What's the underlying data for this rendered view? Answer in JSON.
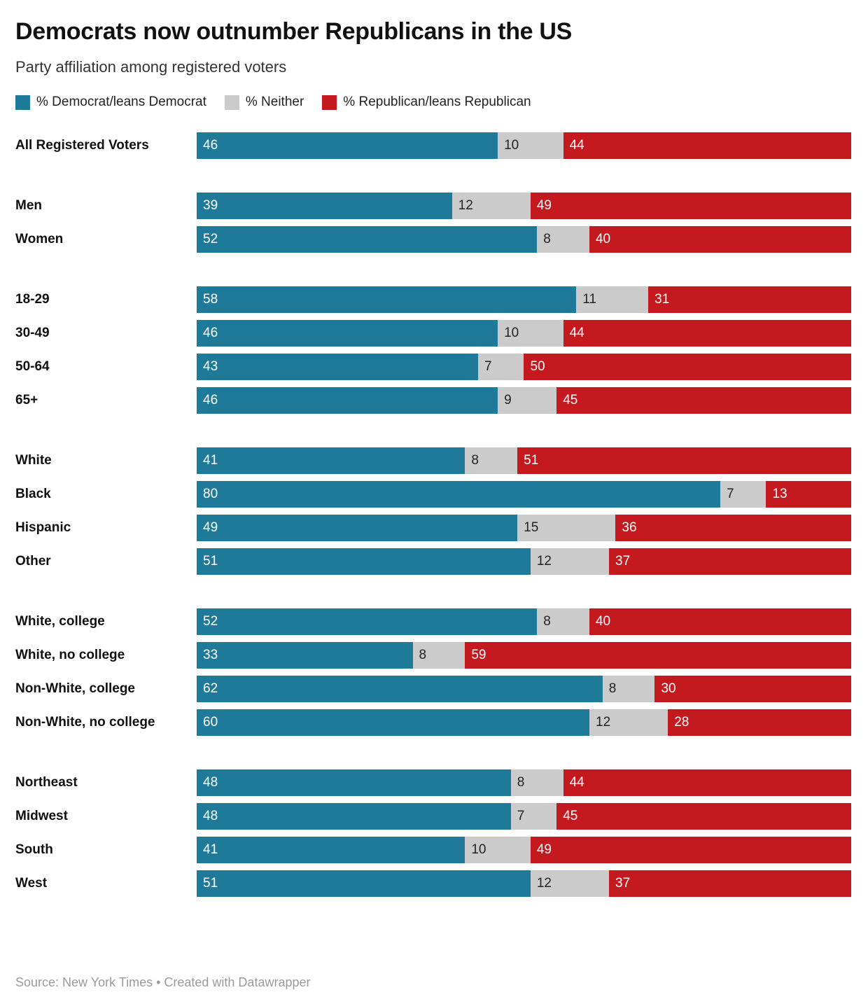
{
  "header": {
    "title": "Democrats now outnumber Republicans in the US",
    "subtitle": "Party affiliation among registered voters"
  },
  "legend": [
    {
      "label": "% Democrat/leans Democrat",
      "color": "#1f7a99"
    },
    {
      "label": "% Neither",
      "color": "#cbcbcb"
    },
    {
      "label": "% Republican/leans Republican",
      "color": "#c4191f"
    }
  ],
  "footer": {
    "source_line": "Source: New York Times • Created with Datawrapper"
  },
  "chart_data": {
    "type": "bar",
    "stacked": true,
    "orientation": "horizontal",
    "title": "Democrats now outnumber Republicans in the US",
    "subtitle": "Party affiliation among registered voters",
    "xlim": [
      0,
      100
    ],
    "series_names": [
      "% Democrat/leans Democrat",
      "% Neither",
      "% Republican/leans Republican"
    ],
    "colors": [
      "#1f7a99",
      "#cbcbcb",
      "#c4191f"
    ],
    "value_text_colors": [
      "#ffffff",
      "#222222",
      "#ffffff"
    ],
    "groups": [
      {
        "rows": [
          {
            "label": "All Registered Voters",
            "values": [
              46,
              10,
              44
            ]
          }
        ]
      },
      {
        "rows": [
          {
            "label": "Men",
            "values": [
              39,
              12,
              49
            ]
          },
          {
            "label": "Women",
            "values": [
              52,
              8,
              40
            ]
          }
        ]
      },
      {
        "rows": [
          {
            "label": "18-29",
            "values": [
              58,
              11,
              31
            ]
          },
          {
            "label": "30-49",
            "values": [
              46,
              10,
              44
            ]
          },
          {
            "label": "50-64",
            "values": [
              43,
              7,
              50
            ]
          },
          {
            "label": "65+",
            "values": [
              46,
              9,
              45
            ]
          }
        ]
      },
      {
        "rows": [
          {
            "label": "White",
            "values": [
              41,
              8,
              51
            ]
          },
          {
            "label": "Black",
            "values": [
              80,
              7,
              13
            ]
          },
          {
            "label": "Hispanic",
            "values": [
              49,
              15,
              36
            ]
          },
          {
            "label": "Other",
            "values": [
              51,
              12,
              37
            ]
          }
        ]
      },
      {
        "rows": [
          {
            "label": "White, college",
            "values": [
              52,
              8,
              40
            ]
          },
          {
            "label": "White, no college",
            "values": [
              33,
              8,
              59
            ]
          },
          {
            "label": "Non-White, college",
            "values": [
              62,
              8,
              30
            ]
          },
          {
            "label": "Non-White, no college",
            "values": [
              60,
              12,
              28
            ]
          }
        ]
      },
      {
        "rows": [
          {
            "label": "Northeast",
            "values": [
              48,
              8,
              44
            ]
          },
          {
            "label": "Midwest",
            "values": [
              48,
              7,
              45
            ]
          },
          {
            "label": "South",
            "values": [
              41,
              10,
              49
            ]
          },
          {
            "label": "West",
            "values": [
              51,
              12,
              37
            ]
          }
        ]
      }
    ]
  }
}
